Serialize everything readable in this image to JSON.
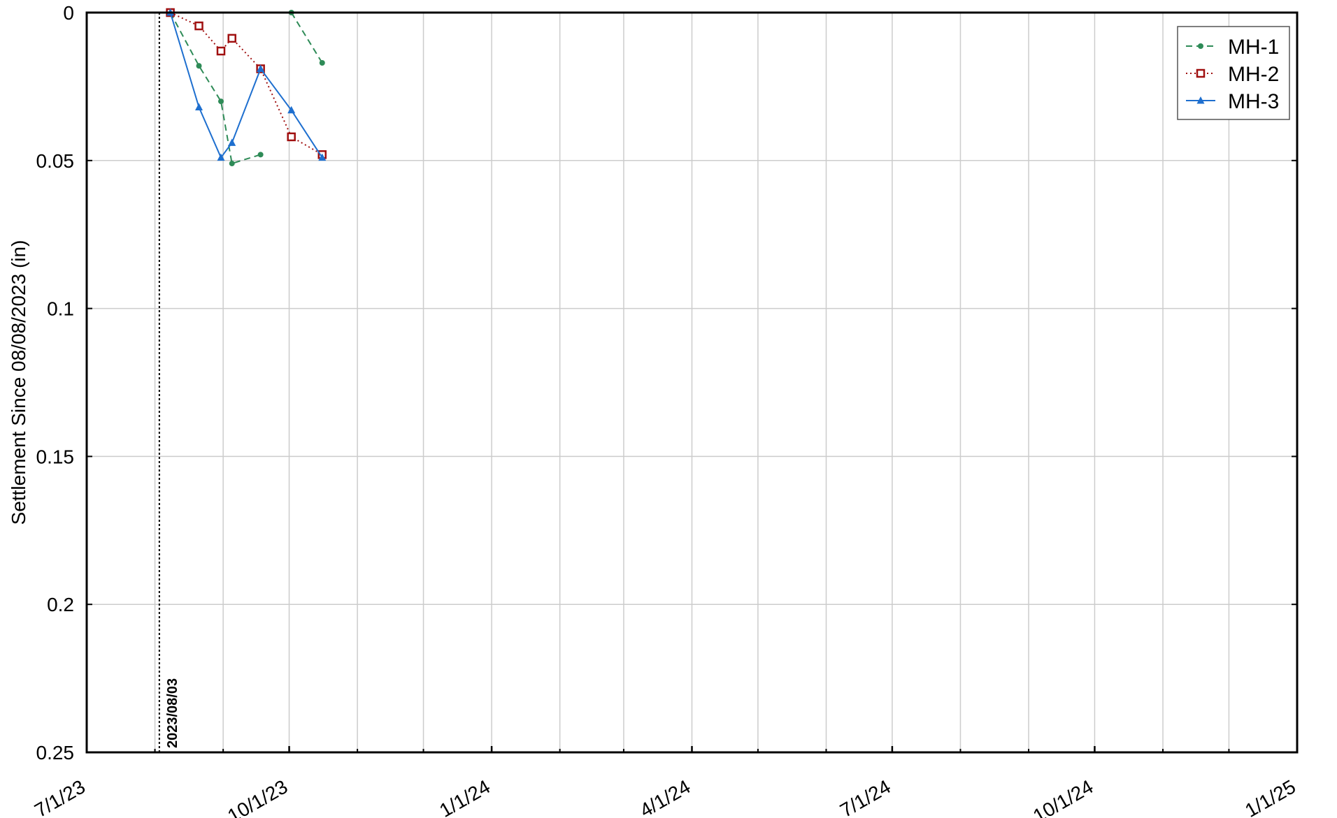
{
  "chart_data": {
    "type": "line",
    "title": "",
    "xlabel": "",
    "ylabel": "Settlement Since 08/08/2023 (in)",
    "y_axis_inverted": true,
    "ylim": [
      0,
      0.25
    ],
    "y_ticks": [
      "0",
      "0.05",
      "0.1",
      "0.15",
      "0.2",
      "0.25"
    ],
    "xlim": [
      "2023-07-01",
      "2025-01-01"
    ],
    "x_tick_labels": [
      "7/1/23",
      "10/1/23",
      "1/1/24",
      "4/1/24",
      "7/1/24",
      "10/1/24",
      "1/1/25"
    ],
    "grid": true,
    "legend_position": "top-right",
    "vertical_marker": {
      "date": "2023-08-03",
      "label": "2023/08/03"
    },
    "series": [
      {
        "name": "MH-1",
        "color": "#2e8b57",
        "line_style": "dashed",
        "marker": "dot",
        "points": [
          {
            "x": "2023-08-08",
            "y": 0.0
          },
          {
            "x": "2023-08-21",
            "y": 0.018
          },
          {
            "x": "2023-08-31",
            "y": 0.03
          },
          {
            "x": "2023-09-05",
            "y": 0.051
          },
          {
            "x": "2023-09-18",
            "y": 0.048
          },
          {
            "x": null,
            "y": null
          },
          {
            "x": "2023-10-02",
            "y": 0.0
          },
          {
            "x": "2023-10-16",
            "y": 0.017
          }
        ]
      },
      {
        "name": "MH-2",
        "color": "#a01010",
        "line_style": "dotted",
        "marker": "square",
        "points": [
          {
            "x": "2023-08-08",
            "y": 0.0
          },
          {
            "x": "2023-08-21",
            "y": 0.0045
          },
          {
            "x": "2023-08-31",
            "y": 0.013
          },
          {
            "x": "2023-09-05",
            "y": 0.0087
          },
          {
            "x": "2023-09-18",
            "y": 0.019
          },
          {
            "x": "2023-10-02",
            "y": 0.042
          },
          {
            "x": "2023-10-16",
            "y": 0.048
          }
        ]
      },
      {
        "name": "MH-3",
        "color": "#1e6fcf",
        "line_style": "solid",
        "marker": "triangle",
        "points": [
          {
            "x": "2023-08-08",
            "y": 0.0
          },
          {
            "x": "2023-08-21",
            "y": 0.032
          },
          {
            "x": "2023-08-31",
            "y": 0.049
          },
          {
            "x": "2023-09-05",
            "y": 0.044
          },
          {
            "x": "2023-09-18",
            "y": 0.019
          },
          {
            "x": "2023-10-02",
            "y": 0.033
          },
          {
            "x": "2023-10-16",
            "y": 0.049
          }
        ]
      }
    ]
  }
}
